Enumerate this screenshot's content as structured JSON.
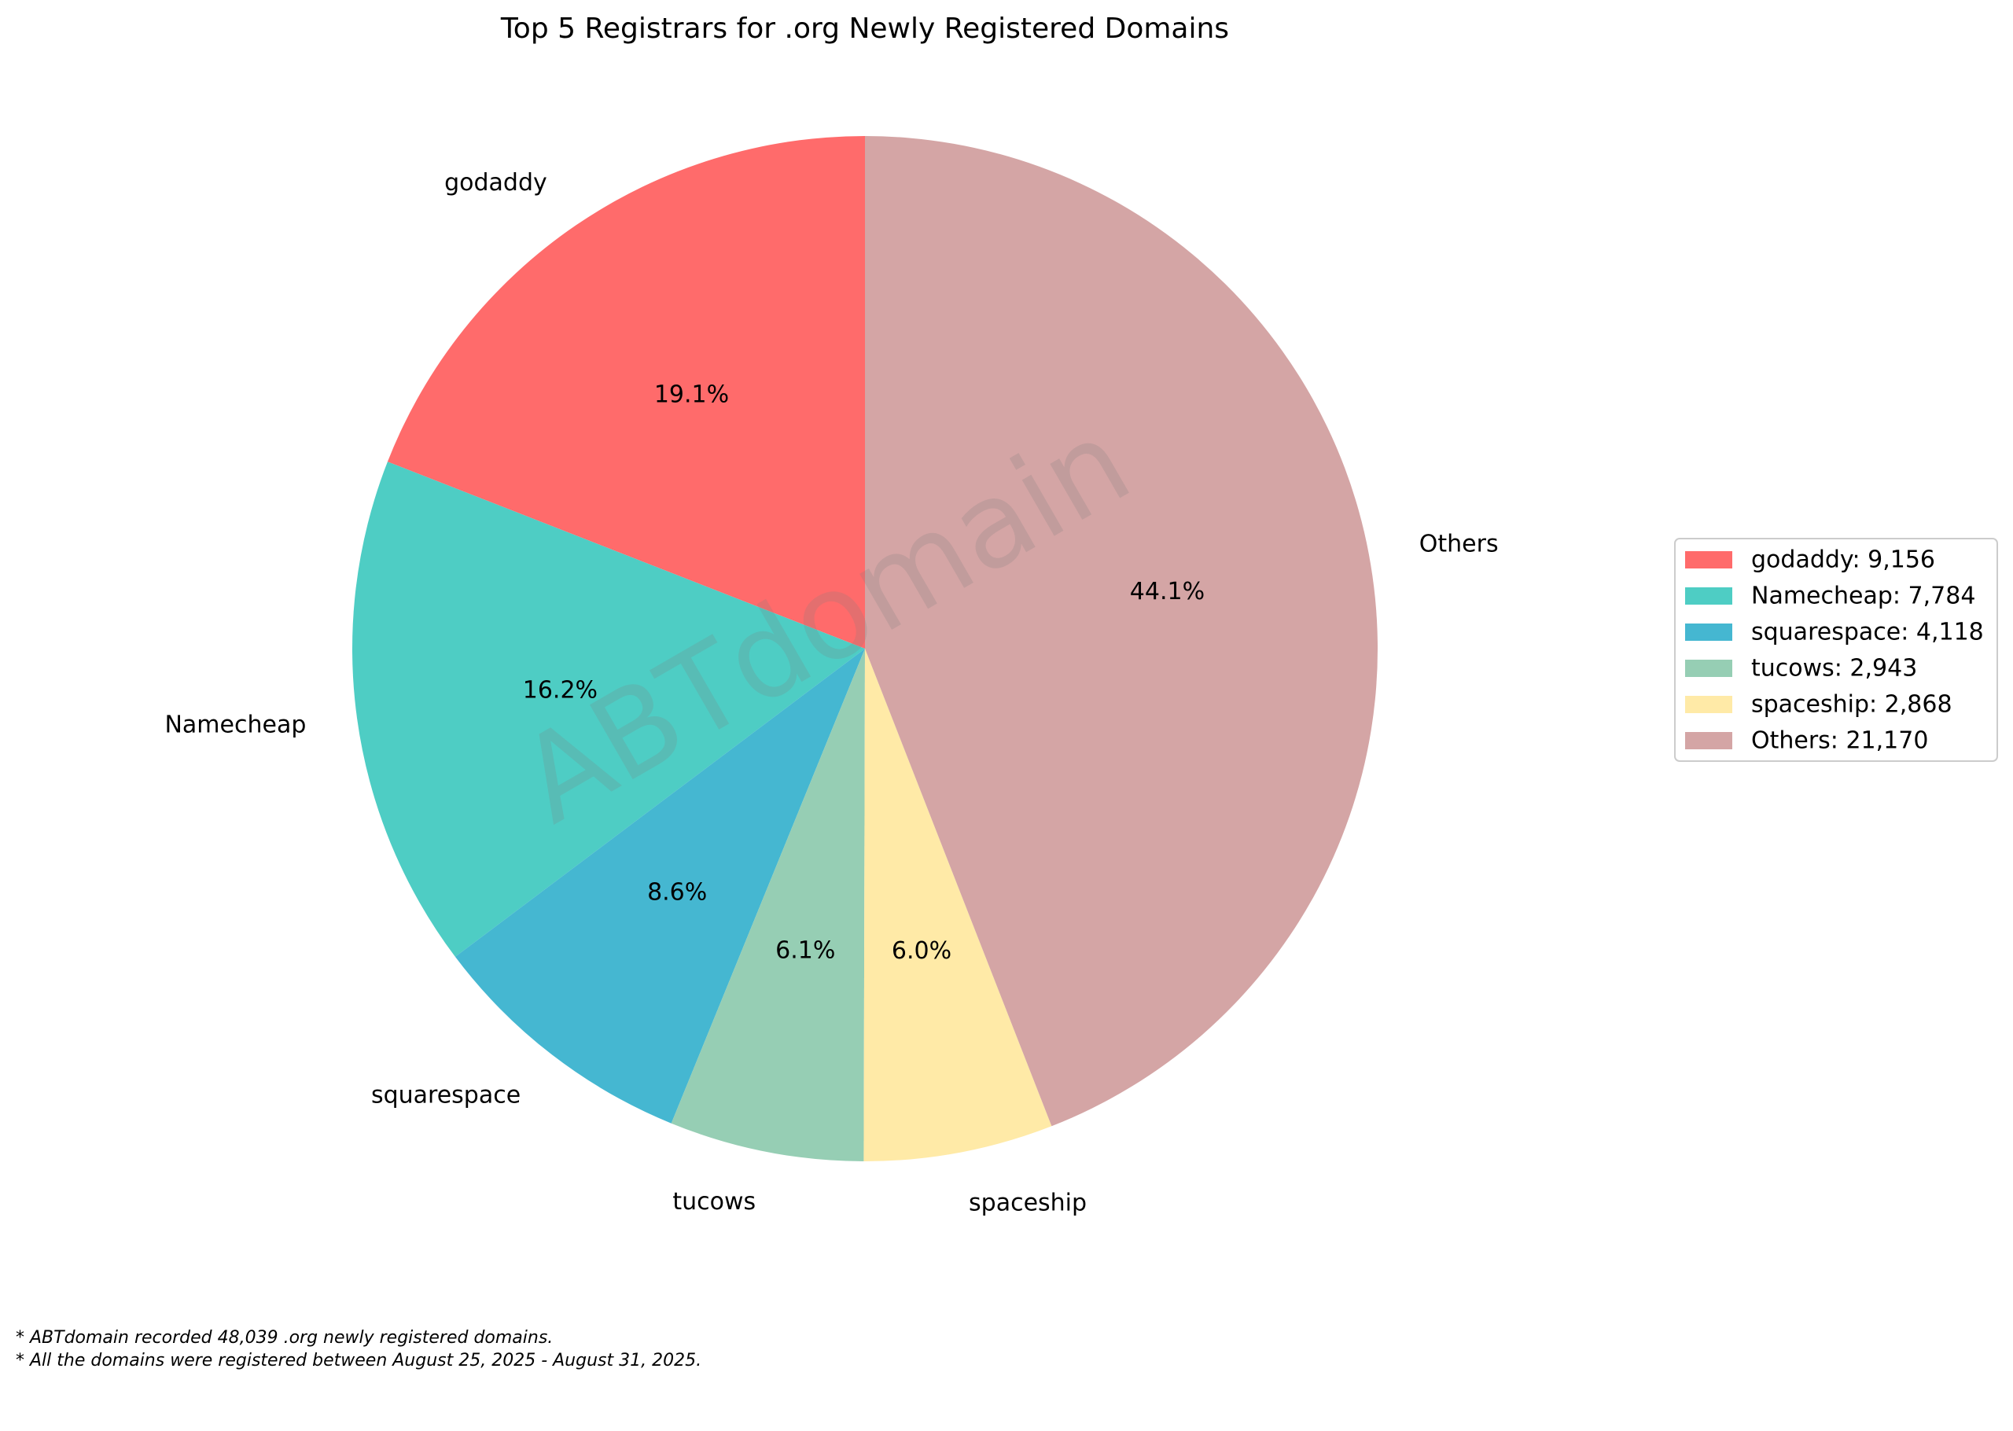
{
  "chart_data": {
    "type": "pie",
    "title": "Top 5 Registrars for .org Newly Registered Domains",
    "slices": [
      {
        "label": "godaddy",
        "value": 9156,
        "pct_label": "19.1%",
        "legend": "godaddy: 9,156",
        "color": "#FF6B6B"
      },
      {
        "label": "Namecheap",
        "value": 7784,
        "pct_label": "16.2%",
        "legend": "Namecheap: 7,784",
        "color": "#4ECDC4"
      },
      {
        "label": "squarespace",
        "value": 4118,
        "pct_label": "8.6%",
        "legend": "squarespace: 4,118",
        "color": "#45B7D1"
      },
      {
        "label": "tucows",
        "value": 2943,
        "pct_label": "6.1%",
        "legend": "tucows: 2,943",
        "color": "#96CEB4"
      },
      {
        "label": "spaceship",
        "value": 2868,
        "pct_label": "6.0%",
        "legend": "spaceship: 2,868",
        "color": "#FFEAA7"
      },
      {
        "label": "Others",
        "value": 21170,
        "pct_label": "44.1%",
        "legend": "Others: 21,170",
        "color": "#D4A5A5"
      }
    ],
    "start_angle_deg": 90,
    "direction": "counterclockwise",
    "legend_placement": "right",
    "watermark": "ABTdomain"
  },
  "footnotes": [
    "* ABTdomain recorded 48,039 .org newly registered domains.",
    "* All the domains were registered between August 25, 2025 - August 31, 2025."
  ]
}
